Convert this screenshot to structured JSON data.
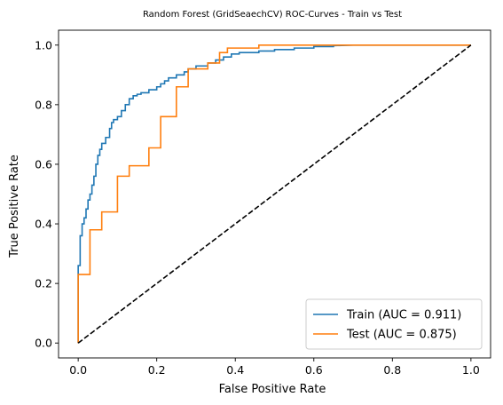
{
  "chart_data": {
    "type": "line",
    "title": "Random Forest (GridSeaechCV) ROC-Curves - Train vs Test",
    "xlabel": "False Positive Rate",
    "ylabel": "True Positive Rate",
    "xlim": [
      -0.05,
      1.05
    ],
    "ylim": [
      -0.05,
      1.05
    ],
    "xticks": [
      0.0,
      0.2,
      0.4,
      0.6,
      0.8,
      1.0
    ],
    "xtick_labels": [
      "0.0",
      "0.2",
      "0.4",
      "0.6",
      "0.8",
      "1.0"
    ],
    "yticks": [
      0.0,
      0.2,
      0.4,
      0.6,
      0.8,
      1.0
    ],
    "ytick_labels": [
      "0.0",
      "0.2",
      "0.4",
      "0.6",
      "0.8",
      "1.0"
    ],
    "grid": false,
    "legend_position": "bottom-right",
    "series": [
      {
        "name": "Train (AUC = 0.911)",
        "color": "#1f77b4",
        "x": [
          0.0,
          0.0,
          0.005,
          0.005,
          0.01,
          0.01,
          0.015,
          0.015,
          0.02,
          0.02,
          0.025,
          0.025,
          0.03,
          0.03,
          0.035,
          0.035,
          0.04,
          0.04,
          0.045,
          0.045,
          0.05,
          0.05,
          0.055,
          0.055,
          0.06,
          0.06,
          0.065,
          0.065,
          0.07,
          0.07,
          0.08,
          0.08,
          0.085,
          0.085,
          0.09,
          0.09,
          0.095,
          0.095,
          0.1,
          0.1,
          0.11,
          0.11,
          0.12,
          0.12,
          0.13,
          0.13,
          0.14,
          0.14,
          0.15,
          0.15,
          0.16,
          0.16,
          0.18,
          0.18,
          0.2,
          0.2,
          0.21,
          0.21,
          0.22,
          0.22,
          0.23,
          0.23,
          0.25,
          0.25,
          0.27,
          0.27,
          0.28,
          0.28,
          0.3,
          0.3,
          0.33,
          0.33,
          0.35,
          0.35,
          0.37,
          0.37,
          0.39,
          0.39,
          0.41,
          0.41,
          0.46,
          0.46,
          0.5,
          0.5,
          0.55,
          0.55,
          0.6,
          0.6,
          0.65,
          0.65,
          0.7,
          1.0
        ],
        "y": [
          0.0,
          0.26,
          0.26,
          0.36,
          0.36,
          0.4,
          0.4,
          0.42,
          0.42,
          0.45,
          0.45,
          0.48,
          0.48,
          0.5,
          0.5,
          0.53,
          0.53,
          0.56,
          0.56,
          0.6,
          0.6,
          0.63,
          0.63,
          0.65,
          0.65,
          0.67,
          0.67,
          0.67,
          0.67,
          0.69,
          0.69,
          0.72,
          0.72,
          0.74,
          0.74,
          0.75,
          0.75,
          0.75,
          0.75,
          0.76,
          0.76,
          0.78,
          0.78,
          0.8,
          0.8,
          0.82,
          0.82,
          0.83,
          0.83,
          0.835,
          0.835,
          0.84,
          0.84,
          0.85,
          0.85,
          0.86,
          0.86,
          0.87,
          0.87,
          0.88,
          0.88,
          0.89,
          0.89,
          0.9,
          0.9,
          0.91,
          0.91,
          0.92,
          0.92,
          0.93,
          0.93,
          0.94,
          0.94,
          0.95,
          0.95,
          0.96,
          0.96,
          0.97,
          0.97,
          0.975,
          0.975,
          0.98,
          0.98,
          0.985,
          0.985,
          0.99,
          0.99,
          0.995,
          0.995,
          0.998,
          1.0,
          1.0
        ]
      },
      {
        "name": "Test (AUC = 0.875)",
        "color": "#ff7f0e",
        "x": [
          0.0,
          0.0,
          0.03,
          0.03,
          0.06,
          0.06,
          0.1,
          0.1,
          0.13,
          0.13,
          0.18,
          0.18,
          0.21,
          0.21,
          0.25,
          0.25,
          0.28,
          0.28,
          0.33,
          0.33,
          0.36,
          0.36,
          0.38,
          0.38,
          0.46,
          0.46,
          1.0
        ],
        "y": [
          0.0,
          0.23,
          0.23,
          0.38,
          0.38,
          0.44,
          0.44,
          0.56,
          0.56,
          0.595,
          0.595,
          0.655,
          0.655,
          0.76,
          0.76,
          0.86,
          0.86,
          0.92,
          0.92,
          0.94,
          0.94,
          0.975,
          0.975,
          0.99,
          0.99,
          1.0,
          1.0
        ]
      },
      {
        "name": "",
        "color": "#000000",
        "dashed": true,
        "x": [
          0.0,
          1.0
        ],
        "y": [
          0.0,
          1.0
        ]
      }
    ]
  }
}
